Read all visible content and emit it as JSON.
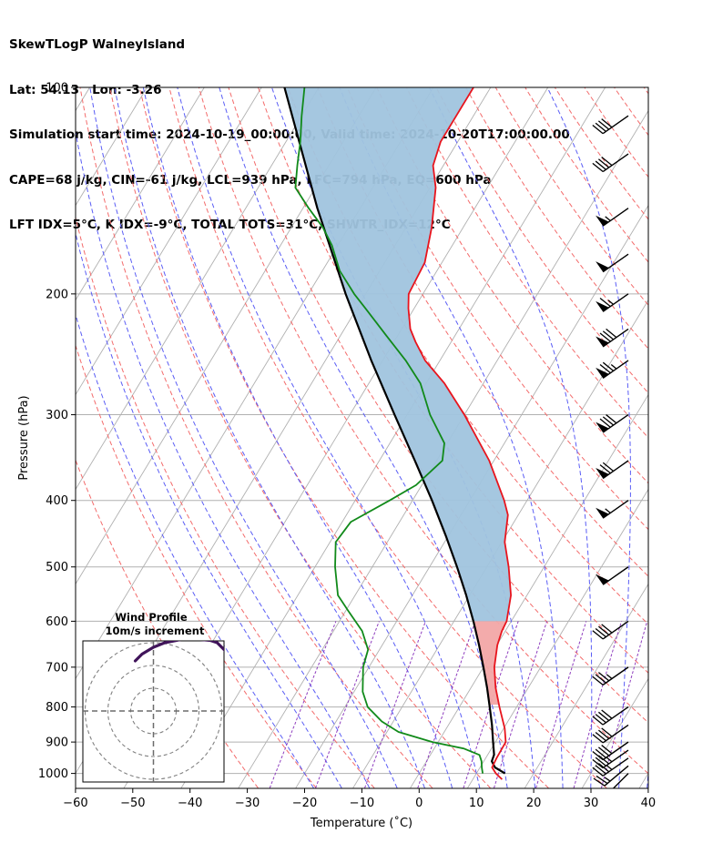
{
  "header": {
    "line1": "SkewTLogP WalneyIsland",
    "line2": "Lat: 54.13   Lon: -3.26",
    "line3": "Simulation start time: 2024-10-19_00:00:00, Valid time: 2024-10-20T17:00:00.00",
    "line4": "CAPE=68 j/kg, CIN=-61 j/kg, LCL=939 hPa, LFC=794 hPa, EQ=600 hPa",
    "line5": "LFT IDX=5°C, K IDX=-9°C, TOTAL TOTS=31°C, SHWTR_IDX=12°C"
  },
  "colors": {
    "temperature": "#e8141d",
    "dewpoint": "#118a1a",
    "parcel": "#000000",
    "cape_fill": "#a0c4de",
    "cin_fill": "#f2a6a6",
    "dry_adiabat": "#f36b6b",
    "moist_adiabat": "#5a5df5",
    "mixing_ratio": "#8f3fbf",
    "isotherm": "#b0b0b0",
    "hodograph": "#40145a"
  },
  "chart_data": {
    "type": "line",
    "xlabel": "Temperature (˚C)",
    "ylabel": "Pressure (hPa)",
    "x_ticks": [
      "−60",
      "−50",
      "−40",
      "−30",
      "−20",
      "−10",
      "0",
      "10",
      "20",
      "30",
      "40"
    ],
    "y_ticks": [
      "100",
      "200",
      "300",
      "400",
      "500",
      "600",
      "700",
      "800",
      "900",
      "1000"
    ],
    "xlim": [
      -60,
      40
    ],
    "ylim": [
      1050,
      100
    ],
    "y_scale": "log",
    "grid": true,
    "temperature_profile": [
      [
        1020,
        15.1
      ],
      [
        1000,
        13.4
      ],
      [
        980,
        12.1
      ],
      [
        950,
        11.9
      ],
      [
        900,
        11.8
      ],
      [
        860,
        10.2
      ],
      [
        800,
        7.0
      ],
      [
        750,
        4.3
      ],
      [
        700,
        1.9
      ],
      [
        650,
        0.1
      ],
      [
        620,
        -0.6
      ],
      [
        600,
        -0.8
      ],
      [
        550,
        -2.8
      ],
      [
        500,
        -6.2
      ],
      [
        460,
        -9.5
      ],
      [
        420,
        -11.8
      ],
      [
        400,
        -14.0
      ],
      [
        350,
        -20.8
      ],
      [
        300,
        -30.0
      ],
      [
        270,
        -36.8
      ],
      [
        250,
        -42.6
      ],
      [
        235,
        -46.2
      ],
      [
        225,
        -48.5
      ],
      [
        210,
        -51.0
      ],
      [
        200,
        -52.5
      ],
      [
        180,
        -53.0
      ],
      [
        160,
        -55.5
      ],
      [
        140,
        -59.0
      ],
      [
        130,
        -61.8
      ],
      [
        120,
        -63.0
      ],
      [
        110,
        -63.0
      ],
      [
        100,
        -63.0
      ]
    ],
    "dewpoint_profile": [
      [
        1000,
        11.1
      ],
      [
        980,
        10.3
      ],
      [
        960,
        9.6
      ],
      [
        940,
        8.6
      ],
      [
        920,
        5.2
      ],
      [
        900,
        -1.0
      ],
      [
        870,
        -8.0
      ],
      [
        840,
        -12.0
      ],
      [
        800,
        -16.0
      ],
      [
        760,
        -18.5
      ],
      [
        700,
        -21.0
      ],
      [
        660,
        -22.0
      ],
      [
        620,
        -25.0
      ],
      [
        580,
        -29.5
      ],
      [
        550,
        -33.0
      ],
      [
        500,
        -36.5
      ],
      [
        460,
        -39.0
      ],
      [
        430,
        -38.5
      ],
      [
        400,
        -34.0
      ],
      [
        380,
        -31.0
      ],
      [
        350,
        -29.0
      ],
      [
        330,
        -30.5
      ],
      [
        300,
        -36.0
      ],
      [
        270,
        -41.0
      ],
      [
        250,
        -46.0
      ],
      [
        230,
        -52.0
      ],
      [
        210,
        -58.5
      ],
      [
        200,
        -62.0
      ],
      [
        185,
        -67.0
      ],
      [
        170,
        -71.0
      ],
      [
        160,
        -74.5
      ],
      [
        150,
        -79.0
      ],
      [
        140,
        -83.5
      ],
      [
        130,
        -85.5
      ],
      [
        120,
        -87.5
      ],
      [
        110,
        -90.0
      ],
      [
        100,
        -92.5
      ]
    ],
    "parcel_profile": [
      [
        1000,
        15.0
      ],
      [
        980,
        12.6
      ],
      [
        960,
        11.4
      ],
      [
        939,
        11.1
      ],
      [
        900,
        9.6
      ],
      [
        850,
        7.6
      ],
      [
        800,
        5.3
      ],
      [
        750,
        2.8
      ],
      [
        700,
        0.0
      ],
      [
        650,
        -3.1
      ],
      [
        600,
        -6.6
      ],
      [
        550,
        -10.6
      ],
      [
        500,
        -15.2
      ],
      [
        450,
        -20.5
      ],
      [
        400,
        -26.6
      ],
      [
        350,
        -33.8
      ],
      [
        300,
        -42.2
      ],
      [
        250,
        -52.0
      ],
      [
        200,
        -63.5
      ],
      [
        150,
        -77.5
      ],
      [
        100,
        -96.0
      ]
    ],
    "hodograph": {
      "title": "Wind Profile",
      "subtitle": "10m/s increment",
      "rings_ms": [
        10,
        20,
        30
      ],
      "points_uv": [
        [
          -8,
          22
        ],
        [
          -5,
          25
        ],
        [
          0,
          28
        ],
        [
          5,
          30
        ],
        [
          10,
          31
        ],
        [
          15,
          32
        ],
        [
          20,
          31.5
        ],
        [
          25,
          31
        ],
        [
          28,
          30
        ],
        [
          30,
          28
        ],
        [
          32,
          26
        ],
        [
          34,
          24
        ],
        [
          37,
          22
        ],
        [
          36,
          21
        ]
      ]
    },
    "wind_barbs": [
      {
        "p": 1000,
        "speed_kt": 15,
        "dir_deg": 225
      },
      {
        "p": 975,
        "speed_kt": 25,
        "dir_deg": 230
      },
      {
        "p": 950,
        "speed_kt": 35,
        "dir_deg": 235
      },
      {
        "p": 925,
        "speed_kt": 35,
        "dir_deg": 235
      },
      {
        "p": 900,
        "speed_kt": 40,
        "dir_deg": 235
      },
      {
        "p": 850,
        "speed_kt": 40,
        "dir_deg": 235
      },
      {
        "p": 800,
        "speed_kt": 40,
        "dir_deg": 235
      },
      {
        "p": 700,
        "speed_kt": 35,
        "dir_deg": 235
      },
      {
        "p": 600,
        "speed_kt": 40,
        "dir_deg": 235
      },
      {
        "p": 500,
        "speed_kt": 50,
        "dir_deg": 235
      },
      {
        "p": 400,
        "speed_kt": 55,
        "dir_deg": 235
      },
      {
        "p": 350,
        "speed_kt": 70,
        "dir_deg": 235
      },
      {
        "p": 300,
        "speed_kt": 80,
        "dir_deg": 235
      },
      {
        "p": 250,
        "speed_kt": 75,
        "dir_deg": 235
      },
      {
        "p": 225,
        "speed_kt": 80,
        "dir_deg": 235
      },
      {
        "p": 200,
        "speed_kt": 65,
        "dir_deg": 235
      },
      {
        "p": 175,
        "speed_kt": 50,
        "dir_deg": 235
      },
      {
        "p": 150,
        "speed_kt": 55,
        "dir_deg": 235
      },
      {
        "p": 125,
        "speed_kt": 40,
        "dir_deg": 235
      },
      {
        "p": 110,
        "speed_kt": 40,
        "dir_deg": 235
      }
    ]
  }
}
